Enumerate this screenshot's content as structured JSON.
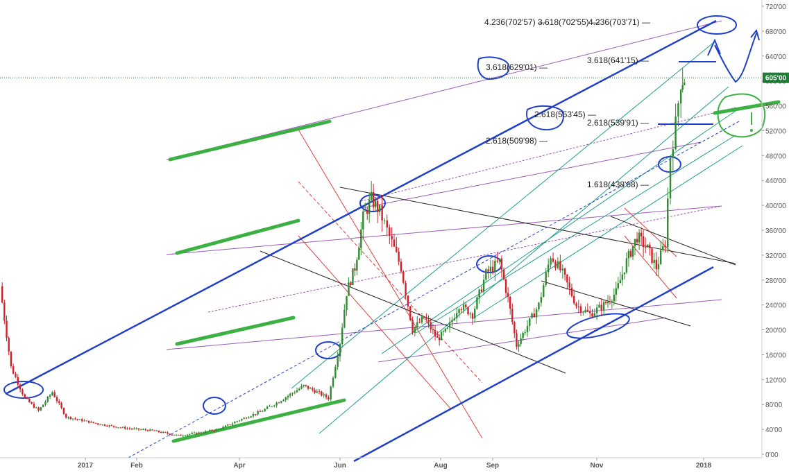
{
  "chart_data": {
    "type": "candlestick",
    "title": "",
    "xlabel": "",
    "ylabel": "",
    "ylim": [
      0,
      730
    ],
    "grid": false,
    "legend": "none",
    "y_ticks": [
      "0'00",
      "40'00",
      "80'00",
      "120'00",
      "160'00",
      "200'00",
      "240'00",
      "280'00",
      "320'00",
      "360'00",
      "400'00",
      "440'00",
      "480'00",
      "520'00",
      "560'00",
      "600'00",
      "640'00",
      "680'00",
      "720'00"
    ],
    "x_ticks": [
      "2017",
      "Feb",
      "Apr",
      "Jun",
      "Aug",
      "Sep",
      "Nov",
      "2018"
    ],
    "last_price": {
      "label": "605'00",
      "value": 605
    },
    "colors": {
      "up": "#2e8b2e",
      "down": "#d1202a",
      "channel": "#1f3fc8",
      "fib_line": "#9b59b6",
      "annotation": "#3cb043",
      "red_lines": "#e04040",
      "teal_lines": "#20a08a",
      "black_lines": "#222222",
      "last_price": "#1e7b34"
    },
    "fib_labels": [
      {
        "text": "4.236(702'57)",
        "value": 702.57
      },
      {
        "text": "3.618(702'55)",
        "value": 702.55
      },
      {
        "text": "4.236(703'71)",
        "value": 703.71
      },
      {
        "text": "3.618(629'01)",
        "value": 629.01
      },
      {
        "text": "3.618(641'15)",
        "value": 641.15
      },
      {
        "text": "2.618(553'45)",
        "value": 553.45
      },
      {
        "text": "2.618(539'91)",
        "value": 539.91
      },
      {
        "text": "2.618(509'98)",
        "value": 509.98
      },
      {
        "text": "1.618(438'68)",
        "value": 438.68
      }
    ],
    "price_path": [
      {
        "x": "2016-12-01",
        "y": 270
      },
      {
        "x": "2016-12-05",
        "y": 140
      },
      {
        "x": "2016-12-10",
        "y": 90
      },
      {
        "x": "2016-12-15",
        "y": 70
      },
      {
        "x": "2016-12-20",
        "y": 100
      },
      {
        "x": "2016-12-25",
        "y": 60
      },
      {
        "x": "2017-01-10",
        "y": 48
      },
      {
        "x": "2017-01-25",
        "y": 42
      },
      {
        "x": "2017-02-10",
        "y": 38
      },
      {
        "x": "2017-02-25",
        "y": 30
      },
      {
        "x": "2017-03-10",
        "y": 35
      },
      {
        "x": "2017-03-20",
        "y": 40
      },
      {
        "x": "2017-04-01",
        "y": 55
      },
      {
        "x": "2017-04-15",
        "y": 70
      },
      {
        "x": "2017-04-25",
        "y": 85
      },
      {
        "x": "2017-05-10",
        "y": 110
      },
      {
        "x": "2017-05-18",
        "y": 100
      },
      {
        "x": "2017-05-25",
        "y": 90
      },
      {
        "x": "2017-06-01",
        "y": 180
      },
      {
        "x": "2017-06-05",
        "y": 260
      },
      {
        "x": "2017-06-10",
        "y": 300
      },
      {
        "x": "2017-06-15",
        "y": 380
      },
      {
        "x": "2017-06-20",
        "y": 410
      },
      {
        "x": "2017-06-25",
        "y": 390
      },
      {
        "x": "2017-07-01",
        "y": 350
      },
      {
        "x": "2017-07-08",
        "y": 300
      },
      {
        "x": "2017-07-15",
        "y": 200
      },
      {
        "x": "2017-07-22",
        "y": 220
      },
      {
        "x": "2017-07-30",
        "y": 185
      },
      {
        "x": "2017-08-05",
        "y": 200
      },
      {
        "x": "2017-08-12",
        "y": 240
      },
      {
        "x": "2017-08-20",
        "y": 225
      },
      {
        "x": "2017-08-28",
        "y": 290
      },
      {
        "x": "2017-09-05",
        "y": 310
      },
      {
        "x": "2017-09-10",
        "y": 250
      },
      {
        "x": "2017-09-15",
        "y": 175
      },
      {
        "x": "2017-09-20",
        "y": 200
      },
      {
        "x": "2017-09-28",
        "y": 240
      },
      {
        "x": "2017-10-05",
        "y": 320
      },
      {
        "x": "2017-10-12",
        "y": 290
      },
      {
        "x": "2017-10-20",
        "y": 240
      },
      {
        "x": "2017-10-28",
        "y": 225
      },
      {
        "x": "2017-11-05",
        "y": 240
      },
      {
        "x": "2017-11-12",
        "y": 260
      },
      {
        "x": "2017-11-18",
        "y": 310
      },
      {
        "x": "2017-11-24",
        "y": 350
      },
      {
        "x": "2017-11-30",
        "y": 330
      },
      {
        "x": "2017-12-05",
        "y": 300
      },
      {
        "x": "2017-12-10",
        "y": 340
      },
      {
        "x": "2017-12-13",
        "y": 480
      },
      {
        "x": "2017-12-16",
        "y": 530
      },
      {
        "x": "2017-12-19",
        "y": 600
      },
      {
        "x": "2017-12-21",
        "y": 605
      }
    ]
  }
}
